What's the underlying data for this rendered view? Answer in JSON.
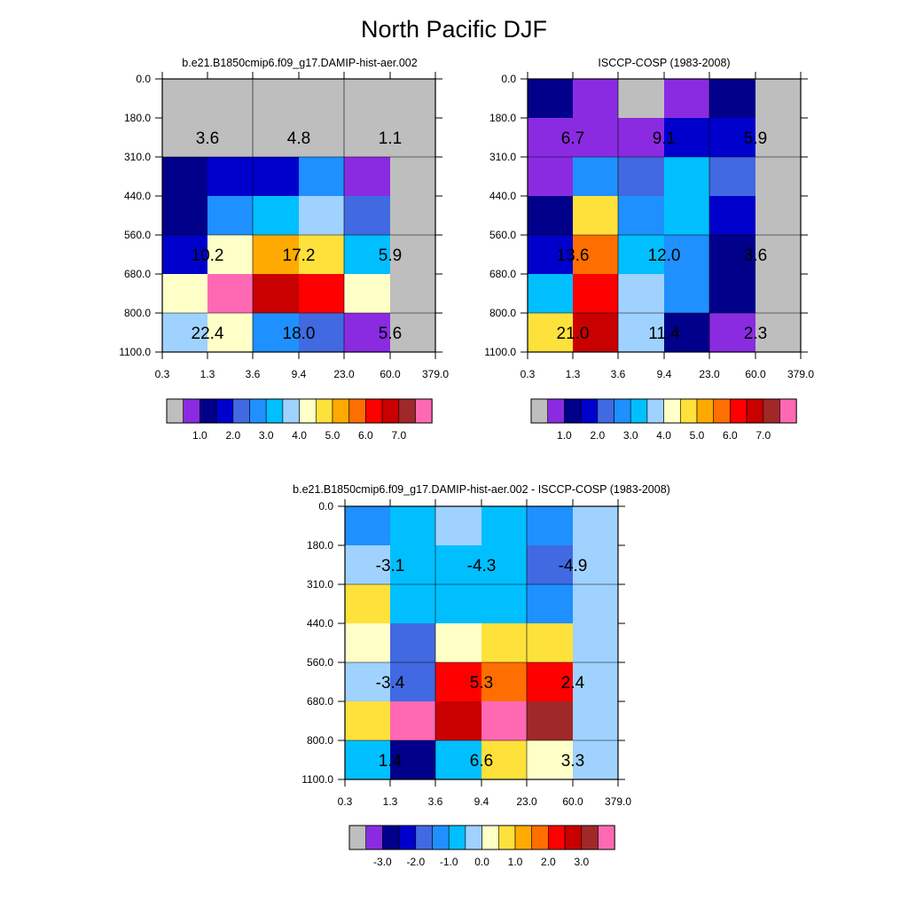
{
  "page": {
    "title": "North Pacific DJF"
  },
  "palettes": {
    "main": [
      "#bebebe",
      "#8a2be2",
      "#00008b",
      "#0000cd",
      "#4169e1",
      "#1e90ff",
      "#00bfff",
      "#a0d2ff",
      "#ffffc8",
      "#ffe13c",
      "#ffaa00",
      "#ff6e00",
      "#ff0000",
      "#c80000",
      "#a02828",
      "#ff69b4"
    ]
  },
  "chart_data": [
    {
      "type": "heatmap",
      "title": "b.e21.B1850cmip6.f09_g17.DAMIP-hist-aer.002",
      "x_ticks": [
        "0.3",
        "1.3",
        "3.6",
        "9.4",
        "23.0",
        "60.0",
        "379.0"
      ],
      "y_ticks": [
        "0.0",
        "180.0",
        "310.0",
        "440.0",
        "560.0",
        "680.0",
        "800.0",
        "1100.0"
      ],
      "color_indices": [
        [
          0,
          0,
          0,
          0,
          0,
          0
        ],
        [
          0,
          0,
          0,
          0,
          0,
          0
        ],
        [
          2,
          3,
          3,
          5,
          1,
          0
        ],
        [
          2,
          5,
          6,
          7,
          4,
          0
        ],
        [
          3,
          8,
          10,
          9,
          6,
          0
        ],
        [
          8,
          15,
          13,
          12,
          8,
          0
        ],
        [
          7,
          8,
          5,
          4,
          1,
          0
        ]
      ],
      "annotations": [
        {
          "col": 1,
          "row": 1,
          "text": "3.6"
        },
        {
          "col": 3,
          "row": 1,
          "text": "4.8"
        },
        {
          "col": 5,
          "row": 1,
          "text": "1.1"
        },
        {
          "col": 1,
          "row": 4,
          "text": "10.2"
        },
        {
          "col": 3,
          "row": 4,
          "text": "17.2"
        },
        {
          "col": 5,
          "row": 4,
          "text": "5.9"
        },
        {
          "col": 1,
          "row": 6,
          "text": "22.4"
        },
        {
          "col": 3,
          "row": 6,
          "text": "18.0"
        },
        {
          "col": 5,
          "row": 6,
          "text": "5.6"
        }
      ],
      "colorbar_labels": [
        "1.0",
        "2.0",
        "3.0",
        "4.0",
        "5.0",
        "6.0",
        "7.0"
      ]
    },
    {
      "type": "heatmap",
      "title": "ISCCP-COSP (1983-2008)",
      "x_ticks": [
        "0.3",
        "1.3",
        "3.6",
        "9.4",
        "23.0",
        "60.0",
        "379.0"
      ],
      "y_ticks": [
        "0.0",
        "180.0",
        "310.0",
        "440.0",
        "560.0",
        "680.0",
        "800.0",
        "1100.0"
      ],
      "color_indices": [
        [
          2,
          1,
          0,
          1,
          2,
          0
        ],
        [
          1,
          1,
          1,
          3,
          3,
          0
        ],
        [
          1,
          5,
          4,
          6,
          4,
          0
        ],
        [
          2,
          9,
          5,
          6,
          3,
          0
        ],
        [
          3,
          11,
          6,
          5,
          2,
          0
        ],
        [
          6,
          12,
          7,
          5,
          2,
          0
        ],
        [
          9,
          13,
          7,
          2,
          1,
          0
        ]
      ],
      "annotations": [
        {
          "col": 1,
          "row": 1,
          "text": "6.7"
        },
        {
          "col": 3,
          "row": 1,
          "text": "9.1"
        },
        {
          "col": 5,
          "row": 1,
          "text": "5.9"
        },
        {
          "col": 1,
          "row": 4,
          "text": "13.6"
        },
        {
          "col": 3,
          "row": 4,
          "text": "12.0"
        },
        {
          "col": 5,
          "row": 4,
          "text": "3.6"
        },
        {
          "col": 1,
          "row": 6,
          "text": "21.0"
        },
        {
          "col": 3,
          "row": 6,
          "text": "11.4"
        },
        {
          "col": 5,
          "row": 6,
          "text": "2.3"
        }
      ],
      "colorbar_labels": [
        "1.0",
        "2.0",
        "3.0",
        "4.0",
        "5.0",
        "6.0",
        "7.0"
      ]
    },
    {
      "type": "heatmap",
      "title": "b.e21.B1850cmip6.f09_g17.DAMIP-hist-aer.002 - ISCCP-COSP (1983-2008)",
      "x_ticks": [
        "0.3",
        "1.3",
        "3.6",
        "9.4",
        "23.0",
        "60.0",
        "379.0"
      ],
      "y_ticks": [
        "0.0",
        "180.0",
        "310.0",
        "440.0",
        "560.0",
        "680.0",
        "800.0",
        "1100.0"
      ],
      "color_indices": [
        [
          5,
          6,
          7,
          6,
          5,
          7
        ],
        [
          7,
          6,
          6,
          6,
          4,
          7
        ],
        [
          9,
          6,
          6,
          6,
          5,
          7
        ],
        [
          8,
          4,
          8,
          9,
          9,
          7
        ],
        [
          7,
          4,
          12,
          11,
          12,
          7
        ],
        [
          9,
          15,
          13,
          15,
          14,
          7
        ],
        [
          6,
          2,
          6,
          9,
          8,
          7
        ]
      ],
      "annotations": [
        {
          "col": 1,
          "row": 1,
          "text": "-3.1"
        },
        {
          "col": 3,
          "row": 1,
          "text": "-4.3"
        },
        {
          "col": 5,
          "row": 1,
          "text": "-4.9"
        },
        {
          "col": 1,
          "row": 4,
          "text": "-3.4"
        },
        {
          "col": 3,
          "row": 4,
          "text": "5.3"
        },
        {
          "col": 5,
          "row": 4,
          "text": "2.4"
        },
        {
          "col": 1,
          "row": 6,
          "text": "1.4"
        },
        {
          "col": 3,
          "row": 6,
          "text": "6.6"
        },
        {
          "col": 5,
          "row": 6,
          "text": "3.3"
        }
      ],
      "colorbar_labels": [
        "-3.0",
        "-2.0",
        "-1.0",
        "0.0",
        "1.0",
        "2.0",
        "3.0"
      ]
    }
  ]
}
